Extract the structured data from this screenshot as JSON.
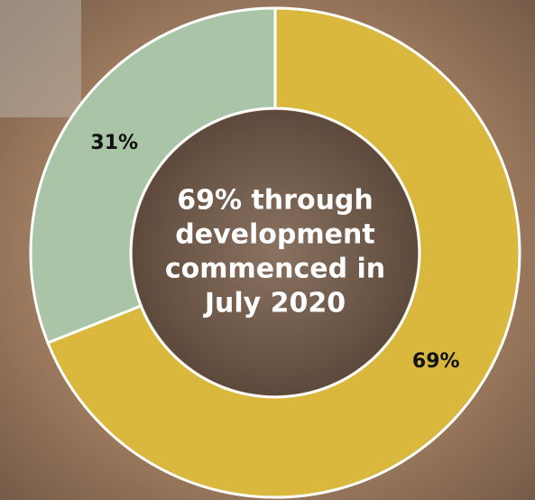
{
  "chart_data": {
    "type": "pie",
    "center_text": [
      "69% through",
      "development",
      "commenced in",
      "July 2020"
    ],
    "values": [
      69,
      31
    ],
    "value_labels": [
      "69%",
      "31%"
    ],
    "colors": [
      "#d9b83d",
      "#a9c4a6"
    ]
  }
}
